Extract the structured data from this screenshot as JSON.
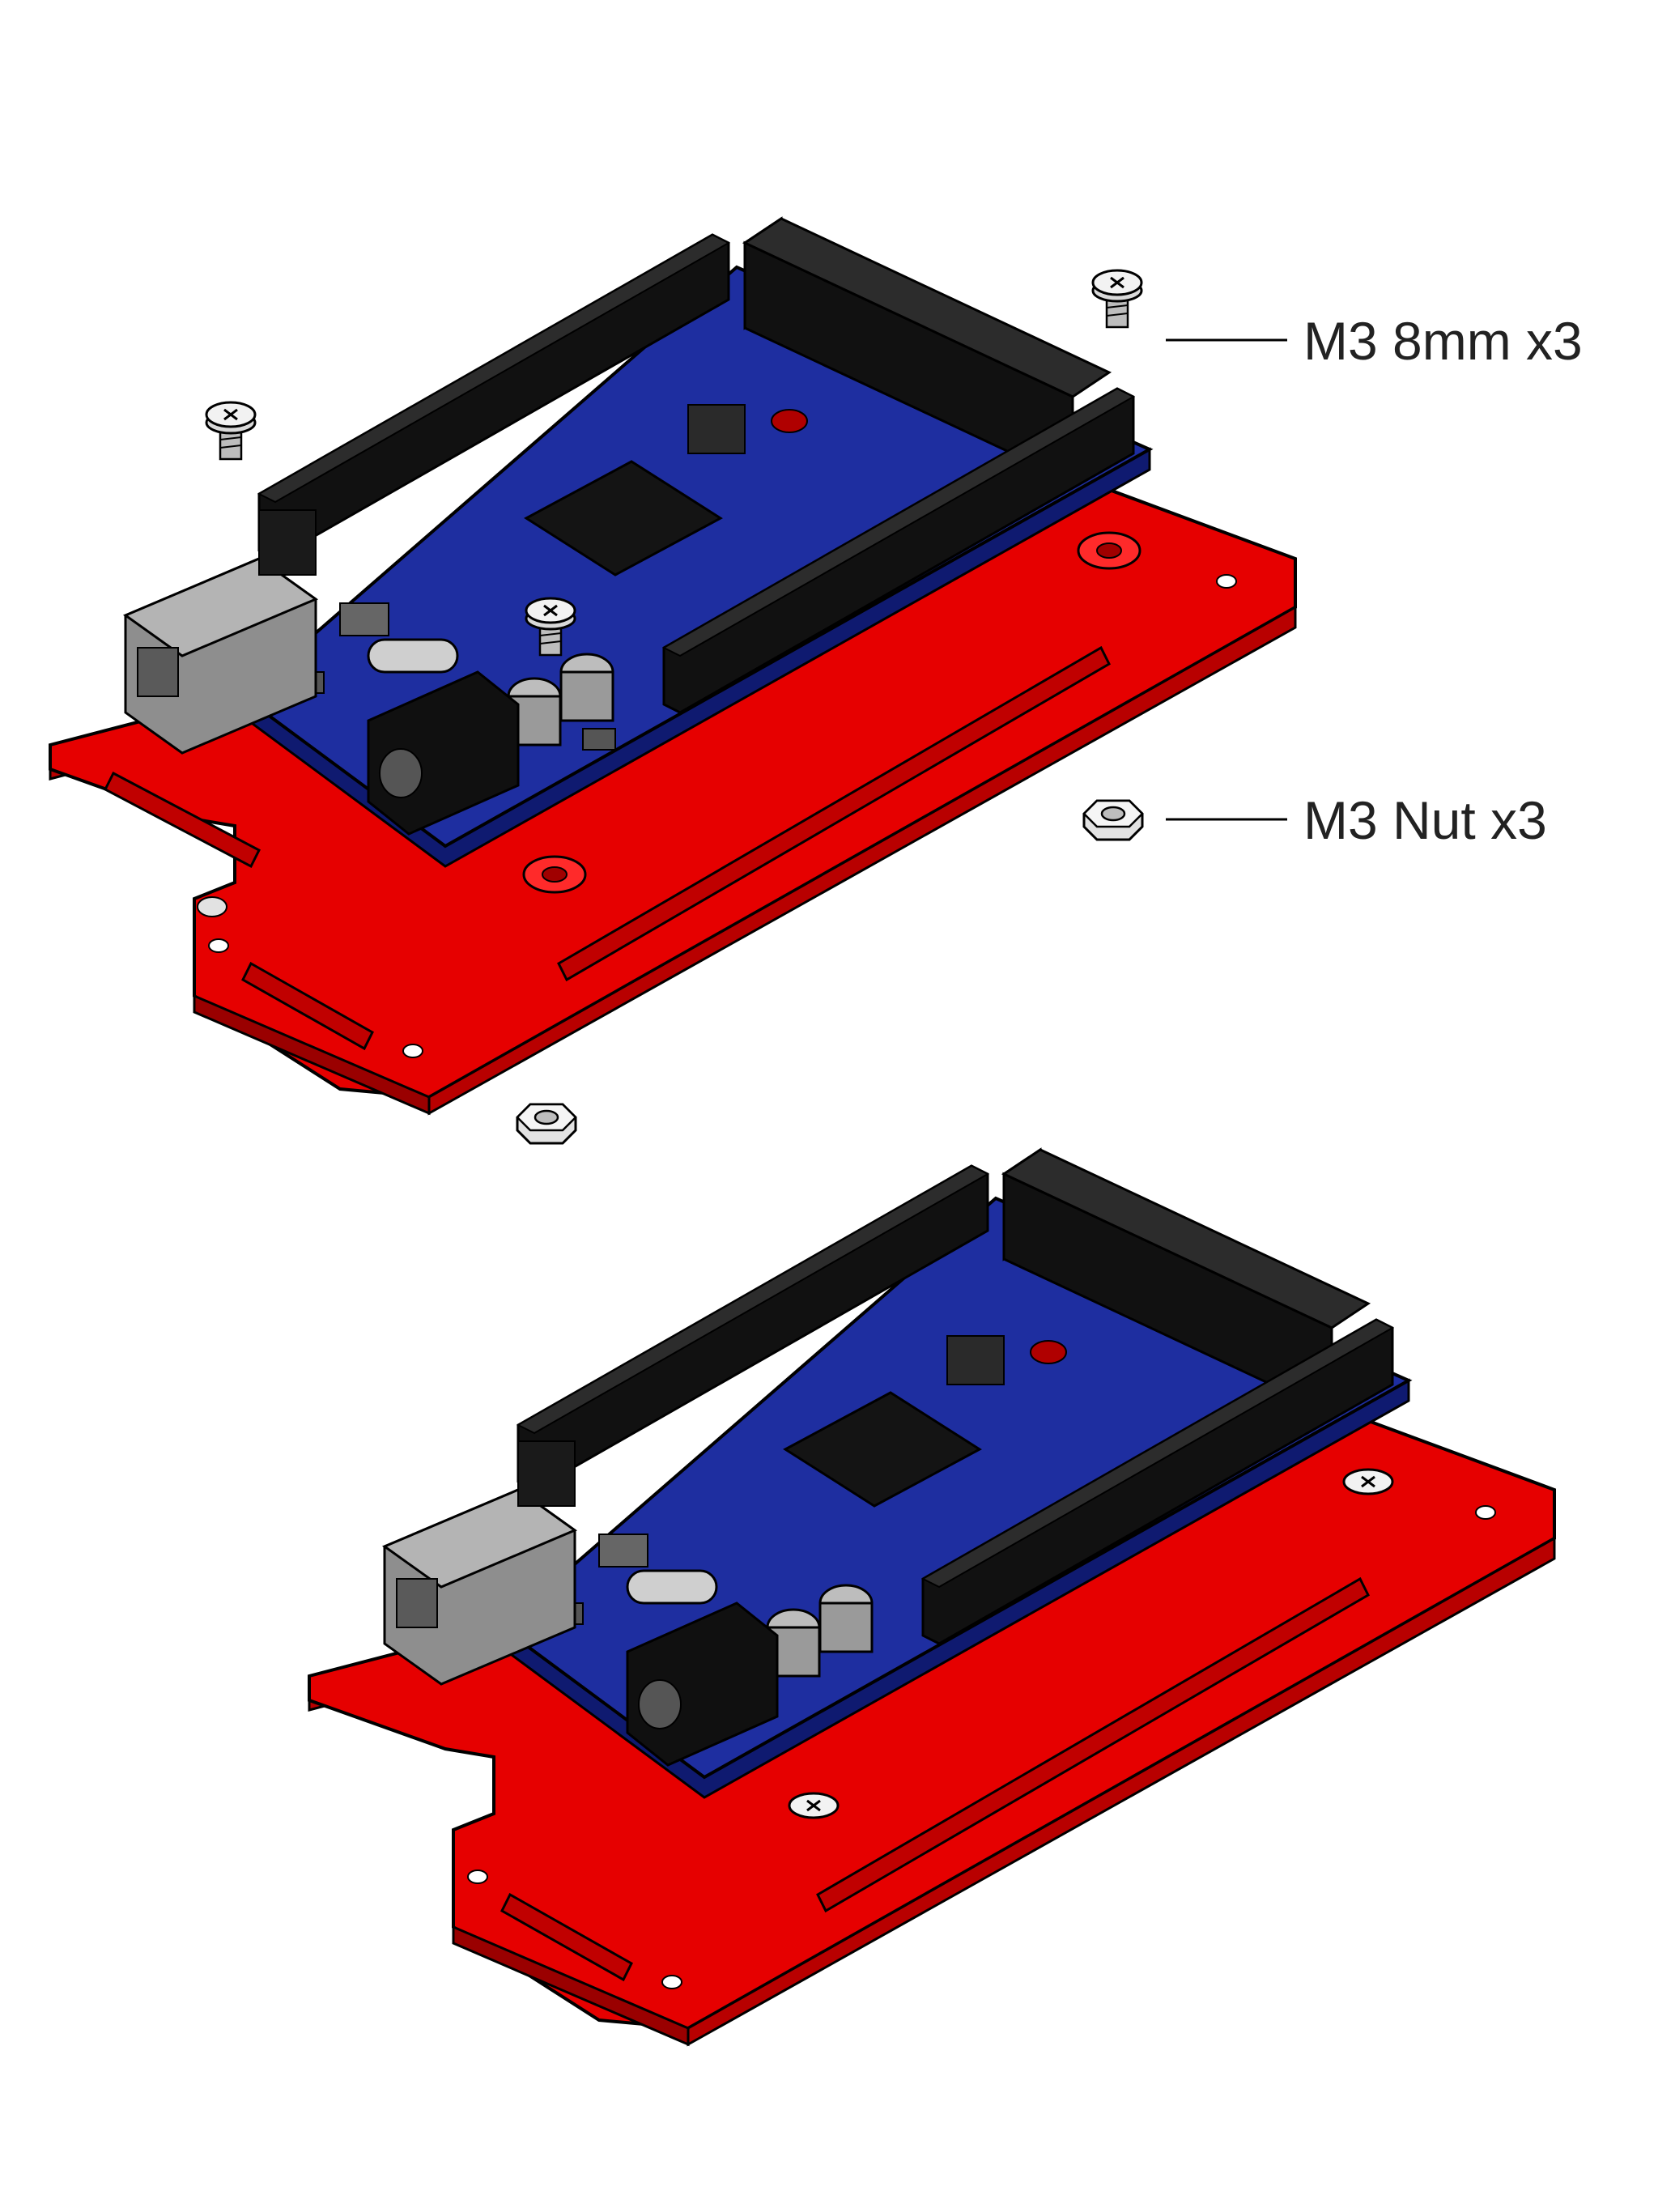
{
  "colors": {
    "plate": "#e60000",
    "board": "#1e2ea0",
    "header": "#111111",
    "connector": "#999999",
    "hardware": "#cccccc"
  },
  "labels": {
    "screw": "M3 8mm x3",
    "nut": "M3 Nut x3"
  },
  "icons": [
    "screw-icon",
    "nut-icon"
  ]
}
